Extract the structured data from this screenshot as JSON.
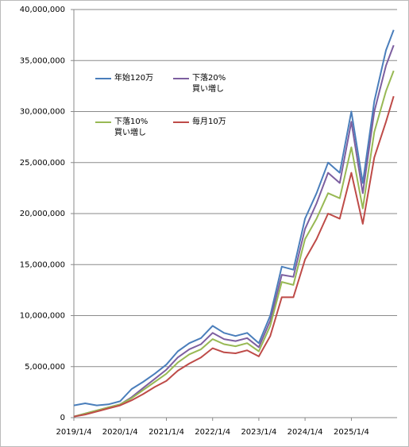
{
  "chart_data": {
    "type": "line",
    "x": [
      "2019/1/4",
      "2019/4/4",
      "2019/7/4",
      "2019/10/4",
      "2020/1/4",
      "2020/4/4",
      "2020/7/4",
      "2020/10/4",
      "2021/1/4",
      "2021/4/4",
      "2021/7/4",
      "2021/10/4",
      "2022/1/4",
      "2022/4/4",
      "2022/7/4",
      "2022/10/4",
      "2023/1/4",
      "2023/4/4",
      "2023/7/4",
      "2023/10/4",
      "2024/1/4",
      "2024/4/4",
      "2024/7/4",
      "2024/10/4",
      "2025/1/4",
      "2025/4/4",
      "2025/7/4",
      "2025/10/4",
      "2025/12/4"
    ],
    "series": [
      {
        "name": "年始120万",
        "color": "#4a7ebb",
        "values": [
          1200000,
          1400000,
          1200000,
          1300000,
          1600000,
          2800000,
          3500000,
          4300000,
          5200000,
          6500000,
          7300000,
          7800000,
          9000000,
          8300000,
          8000000,
          8300000,
          7300000,
          10000000,
          14800000,
          14500000,
          19500000,
          22000000,
          25000000,
          24000000,
          30000000,
          23000000,
          31000000,
          36000000,
          38000000
        ]
      },
      {
        "name": "下落20%\n買い増し",
        "color": "#7d5fa0",
        "values": [
          100000,
          400000,
          700000,
          1000000,
          1300000,
          2000000,
          2900000,
          3800000,
          4700000,
          5900000,
          6700000,
          7200000,
          8300000,
          7700000,
          7500000,
          7800000,
          6900000,
          9500000,
          14000000,
          13800000,
          18500000,
          21000000,
          24000000,
          23000000,
          29000000,
          22000000,
          30000000,
          34500000,
          36500000
        ]
      },
      {
        "name": "下落10%\n買い増し",
        "color": "#98b954",
        "values": [
          100000,
          400000,
          700000,
          1000000,
          1300000,
          1900000,
          2700000,
          3500000,
          4300000,
          5400000,
          6200000,
          6700000,
          7700000,
          7200000,
          7000000,
          7300000,
          6500000,
          9000000,
          13300000,
          13000000,
          17500000,
          19500000,
          22000000,
          21500000,
          26500000,
          20500000,
          28000000,
          32000000,
          34000000
        ]
      },
      {
        "name": "毎月10万",
        "color": "#be4b48",
        "values": [
          100000,
          300000,
          600000,
          900000,
          1200000,
          1700000,
          2300000,
          3000000,
          3600000,
          4600000,
          5300000,
          5900000,
          6800000,
          6400000,
          6300000,
          6600000,
          6000000,
          8000000,
          11800000,
          11800000,
          15500000,
          17500000,
          20000000,
          19500000,
          24000000,
          19000000,
          25500000,
          29000000,
          31500000
        ]
      }
    ],
    "xlim": [
      "2019/1/4",
      "2025/12/31"
    ],
    "xticks": [
      "2019/1/4",
      "2020/1/4",
      "2021/1/4",
      "2022/1/4",
      "2023/1/4",
      "2024/1/4",
      "2025/1/4"
    ],
    "ylim": [
      0,
      40000000
    ],
    "yticks": [
      {
        "value": 0,
        "label": "0"
      },
      {
        "value": 5000000,
        "label": "5,000,000"
      },
      {
        "value": 10000000,
        "label": "10,000,000"
      },
      {
        "value": 15000000,
        "label": "15,000,000"
      },
      {
        "value": 20000000,
        "label": "20,000,000"
      },
      {
        "value": 25000000,
        "label": "25,000,000"
      },
      {
        "value": 30000000,
        "label": "30,000,000"
      },
      {
        "value": 35000000,
        "label": "35,000,000"
      },
      {
        "value": 40000000,
        "label": "40,000,000"
      }
    ],
    "grid": true
  }
}
